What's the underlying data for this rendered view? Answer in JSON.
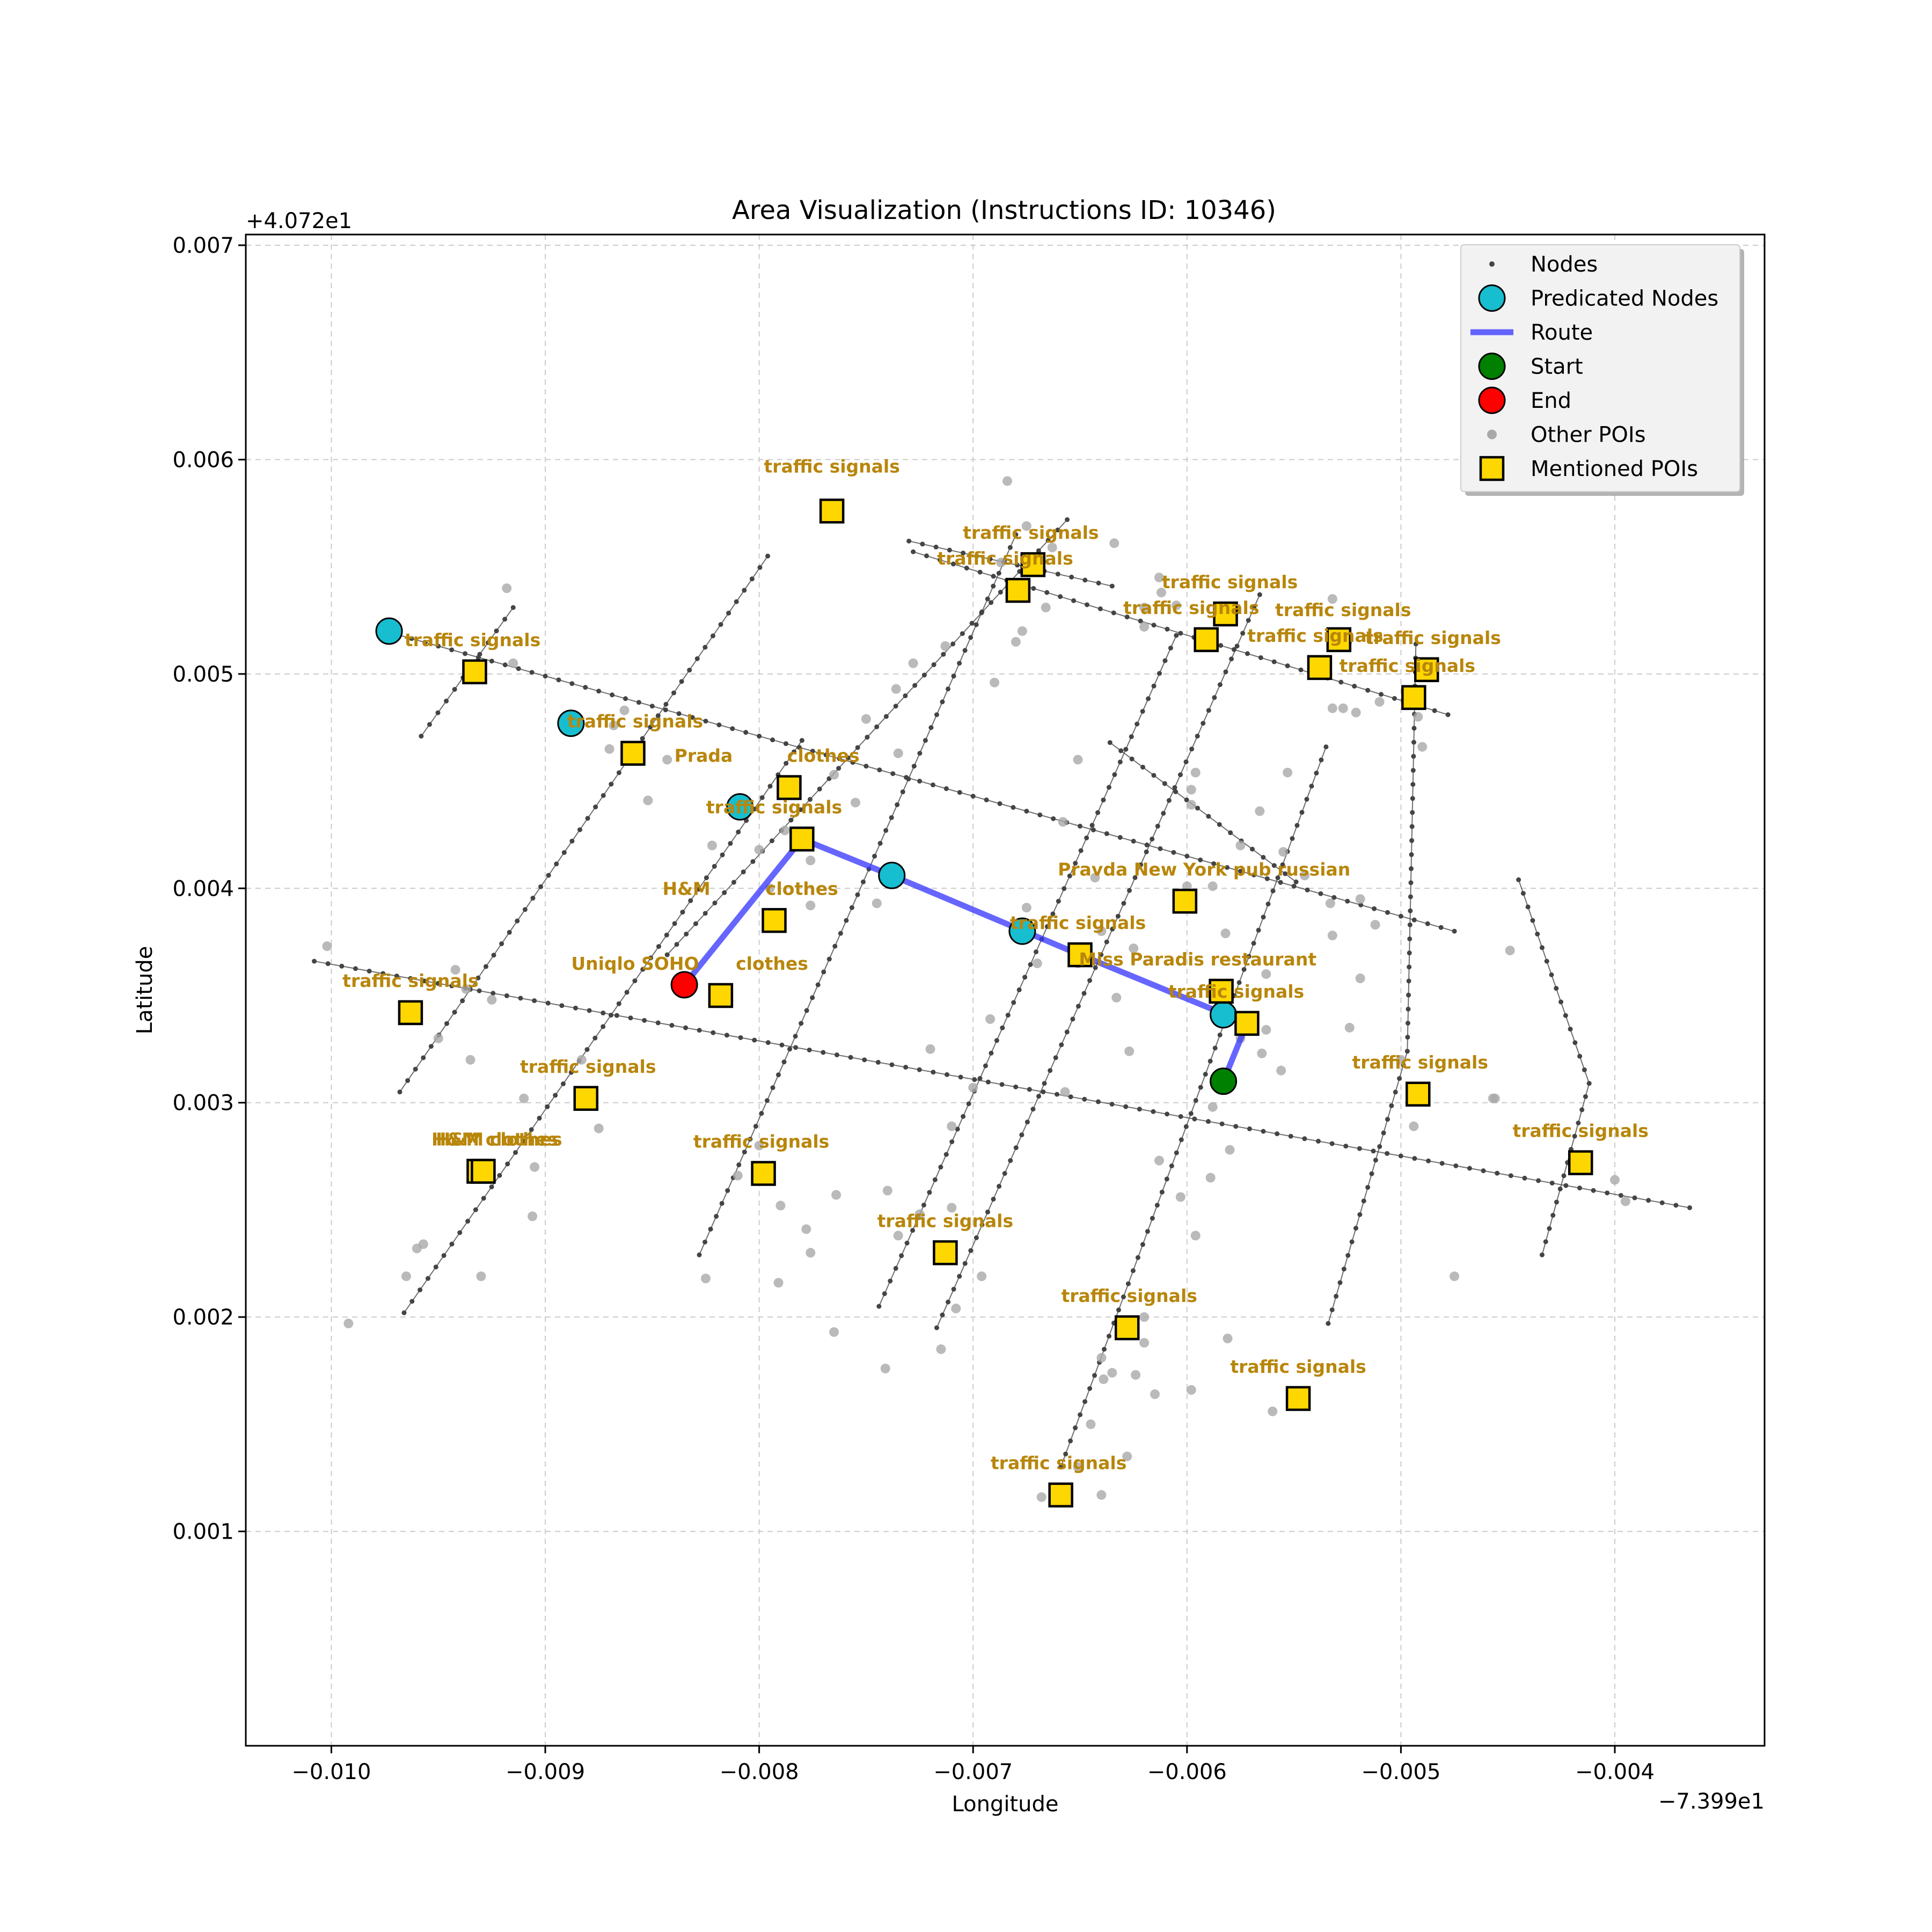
{
  "chart_data": {
    "type": "scatter",
    "title": "Area Visualization (Instructions ID: 10346)",
    "xlabel": "Longitude",
    "ylabel": "Latitude",
    "x_offset_label": "−7.399e1",
    "y_offset_label": "+4.072e1",
    "x_offset": -73.99,
    "y_offset": 40.72,
    "xlim": [
      -0.0104,
      -0.0033
    ],
    "ylim": [
      0.0,
      0.00705
    ],
    "x_ticks": [
      {
        "value": -0.01,
        "label": "−0.010"
      },
      {
        "value": -0.009,
        "label": "−0.009"
      },
      {
        "value": -0.008,
        "label": "−0.008"
      },
      {
        "value": -0.007,
        "label": "−0.007"
      },
      {
        "value": -0.006,
        "label": "−0.006"
      },
      {
        "value": -0.005,
        "label": "−0.005"
      },
      {
        "value": -0.004,
        "label": "−0.004"
      }
    ],
    "y_ticks": [
      {
        "value": 0.001,
        "label": "0.001"
      },
      {
        "value": 0.002,
        "label": "0.002"
      },
      {
        "value": 0.003,
        "label": "0.003"
      },
      {
        "value": 0.004,
        "label": "0.004"
      },
      {
        "value": 0.005,
        "label": "0.005"
      },
      {
        "value": 0.006,
        "label": "0.006"
      },
      {
        "value": 0.007,
        "label": "0.007"
      }
    ],
    "grid": true,
    "legend_position": "top-right",
    "legend": [
      {
        "key": "nodes",
        "label": "Nodes"
      },
      {
        "key": "predicated",
        "label": "Predicated Nodes"
      },
      {
        "key": "route",
        "label": "Route"
      },
      {
        "key": "start",
        "label": "Start"
      },
      {
        "key": "end",
        "label": "End"
      },
      {
        "key": "other_pois",
        "label": "Other POIs"
      },
      {
        "key": "mentioned_pois",
        "label": "Mentioned POIs"
      }
    ],
    "colors": {
      "nodes": "#444444",
      "predicated": "#17becf",
      "route": "#3333ff",
      "start": "#008000",
      "end": "#ff0000",
      "other_pois": "#a9a9a9",
      "mentioned_pois": "#ffd700",
      "poi_label": "#b8860b",
      "grid": "#cccccc"
    },
    "streets": [
      [
        [
          -0.01008,
          0.00366
        ],
        [
          -0.00365,
          0.00251
        ]
      ],
      [
        [
          -0.00975,
          0.0052
        ],
        [
          -0.00475,
          0.0038
        ]
      ],
      [
        [
          -0.00728,
          0.00557
        ],
        [
          -0.00478,
          0.00481
        ]
      ],
      [
        [
          -0.0073,
          0.00562
        ],
        [
          -0.00635,
          0.00541
        ]
      ],
      [
        [
          -0.00636,
          0.00468
        ],
        [
          -0.00549,
          0.00403
        ]
      ],
      [
        [
          -0.00968,
          0.00305
        ],
        [
          -0.00796,
          0.00555
        ]
      ],
      [
        [
          -0.00966,
          0.00202
        ],
        [
          -0.0078,
          0.00469
        ]
      ],
      [
        [
          -0.00958,
          0.00471
        ],
        [
          -0.00915,
          0.00531
        ]
      ],
      [
        [
          -0.00828,
          0.00229
        ],
        [
          -0.0068,
          0.00565
        ]
      ],
      [
        [
          -0.00843,
          0.00369
        ],
        [
          -0.00656,
          0.00572
        ]
      ],
      [
        [
          -0.00744,
          0.00205
        ],
        [
          -0.00605,
          0.00518
        ]
      ],
      [
        [
          -0.00717,
          0.00195
        ],
        [
          -0.00566,
          0.00537
        ]
      ],
      [
        [
          -0.00659,
          0.0013
        ],
        [
          -0.00535,
          0.00466
        ]
      ],
      [
        [
          -0.00534,
          0.00197
        ],
        [
          -0.00497,
          0.00324
        ]
      ],
      [
        [
          -0.00497,
          0.00324
        ],
        [
          -0.00493,
          0.00514
        ]
      ],
      [
        [
          -0.00434,
          0.00229
        ],
        [
          -0.00412,
          0.00309
        ]
      ],
      [
        [
          -0.00412,
          0.00309
        ],
        [
          -0.00445,
          0.00404
        ]
      ]
    ],
    "nodes_count_hint": 0,
    "other_pois": [
      [
        -0.01002,
        0.00373
      ],
      [
        -0.00992,
        0.00197
      ],
      [
        -0.00957,
        0.00234
      ],
      [
        -0.00965,
        0.00219
      ],
      [
        -0.0096,
        0.00232
      ],
      [
        -0.0095,
        0.0033
      ],
      [
        -0.00942,
        0.00362
      ],
      [
        -0.00937,
        0.00353
      ],
      [
        -0.00935,
        0.0032
      ],
      [
        -0.00925,
        0.00348
      ],
      [
        -0.00905,
        0.0027
      ],
      [
        -0.0091,
        0.00302
      ],
      [
        -0.00906,
        0.00247
      ],
      [
        -0.0093,
        0.00219
      ],
      [
        -0.00915,
        0.00505
      ],
      [
        -0.00918,
        0.0054
      ],
      [
        -0.00883,
        0.0032
      ],
      [
        -0.00875,
        0.00288
      ],
      [
        -0.00868,
        0.00476
      ],
      [
        -0.00863,
        0.00483
      ],
      [
        -0.0087,
        0.00465
      ],
      [
        -0.00852,
        0.00441
      ],
      [
        -0.00843,
        0.0046
      ],
      [
        -0.00822,
        0.0042
      ],
      [
        -0.008,
        0.00418
      ],
      [
        -0.00788,
        0.00427
      ],
      [
        -0.00795,
        0.004
      ],
      [
        -0.008,
        0.0028
      ],
      [
        -0.0081,
        0.00266
      ],
      [
        -0.0079,
        0.00252
      ],
      [
        -0.00825,
        0.00218
      ],
      [
        -0.00776,
        0.00392
      ],
      [
        -0.00776,
        0.00413
      ],
      [
        -0.00765,
        0.00453
      ],
      [
        -0.00755,
        0.0044
      ],
      [
        -0.0075,
        0.00479
      ],
      [
        -0.00735,
        0.00463
      ],
      [
        -0.00728,
        0.00505
      ],
      [
        -0.00736,
        0.00493
      ],
      [
        -0.00713,
        0.00513
      ],
      [
        -0.00745,
        0.00393
      ],
      [
        -0.0072,
        0.00325
      ],
      [
        -0.0071,
        0.00289
      ],
      [
        -0.007,
        0.00307
      ],
      [
        -0.00735,
        0.00238
      ],
      [
        -0.0074,
        0.00259
      ],
      [
        -0.00725,
        0.00248
      ],
      [
        -0.00708,
        0.00204
      ],
      [
        -0.00696,
        0.00219
      ],
      [
        -0.00715,
        0.00185
      ],
      [
        -0.00741,
        0.00176
      ],
      [
        -0.00765,
        0.00193
      ],
      [
        -0.0071,
        0.00251
      ],
      [
        -0.00692,
        0.00339
      ],
      [
        -0.0068,
        0.00515
      ],
      [
        -0.00677,
        0.0052
      ],
      [
        -0.0069,
        0.00496
      ],
      [
        -0.00687,
        0.00552
      ],
      [
        -0.00675,
        0.00569
      ],
      [
        -0.00663,
        0.00559
      ],
      [
        -0.00666,
        0.00531
      ],
      [
        -0.00684,
        0.0059
      ],
      [
        -0.00634,
        0.00561
      ],
      [
        -0.00658,
        0.00431
      ],
      [
        -0.00651,
        0.0046
      ],
      [
        -0.00643,
        0.00405
      ],
      [
        -0.0064,
        0.0038
      ],
      [
        -0.00625,
        0.00372
      ],
      [
        -0.00633,
        0.00349
      ],
      [
        -0.00651,
        0.00365
      ],
      [
        -0.00675,
        0.00391
      ],
      [
        -0.0067,
        0.00365
      ],
      [
        -0.00657,
        0.00305
      ],
      [
        -0.00612,
        0.00538
      ],
      [
        -0.00605,
        0.00532
      ],
      [
        -0.0062,
        0.00531
      ],
      [
        -0.00613,
        0.00545
      ],
      [
        -0.00598,
        0.00446
      ],
      [
        -0.0062,
        0.00522
      ],
      [
        -0.00596,
        0.00454
      ],
      [
        -0.00598,
        0.00439
      ],
      [
        -0.00582,
        0.00338
      ],
      [
        -0.00582,
        0.00379
      ],
      [
        -0.00575,
        0.0033
      ],
      [
        -0.00569,
        0.00335
      ],
      [
        -0.00563,
        0.00334
      ],
      [
        -0.00556,
        0.00315
      ],
      [
        -0.00565,
        0.00323
      ],
      [
        -0.00566,
        0.00436
      ],
      [
        -0.00555,
        0.00417
      ],
      [
        -0.00545,
        0.00406
      ],
      [
        -0.00532,
        0.00484
      ],
      [
        -0.00527,
        0.00484
      ],
      [
        -0.00521,
        0.00482
      ],
      [
        -0.00519,
        0.00395
      ],
      [
        -0.0051,
        0.00487
      ],
      [
        -0.00512,
        0.00383
      ],
      [
        -0.00532,
        0.00378
      ],
      [
        -0.00519,
        0.00358
      ],
      [
        -0.00524,
        0.00335
      ],
      [
        -0.00553,
        0.00454
      ],
      [
        -0.00532,
        0.00535
      ],
      [
        -0.00525,
        0.00515
      ],
      [
        -0.0049,
        0.00466
      ],
      [
        -0.005,
        0.0032
      ],
      [
        -0.00494,
        0.00289
      ],
      [
        -0.00475,
        0.00219
      ],
      [
        -0.00456,
        0.00302
      ],
      [
        -0.00457,
        0.00302
      ],
      [
        -0.00449,
        0.00371
      ],
      [
        -0.00492,
        0.0048
      ],
      [
        -0.006,
        0.00401
      ],
      [
        -0.00627,
        0.00324
      ],
      [
        -0.00613,
        0.00273
      ],
      [
        -0.00588,
        0.00298
      ],
      [
        -0.0058,
        0.00278
      ],
      [
        -0.00603,
        0.00256
      ],
      [
        -0.00589,
        0.00265
      ],
      [
        -0.00596,
        0.00238
      ],
      [
        -0.00581,
        0.0019
      ],
      [
        -0.0062,
        0.00188
      ],
      [
        -0.00598,
        0.00166
      ],
      [
        -0.00615,
        0.00164
      ],
      [
        -0.00624,
        0.00173
      ],
      [
        -0.00635,
        0.00174
      ],
      [
        -0.0064,
        0.00181
      ],
      [
        -0.00639,
        0.00171
      ],
      [
        -0.00645,
        0.0015
      ],
      [
        -0.0062,
        0.002
      ],
      [
        -0.0056,
        0.00156
      ],
      [
        -0.00651,
        0.0013
      ],
      [
        -0.0064,
        0.00117
      ],
      [
        -0.00628,
        0.00135
      ],
      [
        -0.00668,
        0.00116
      ],
      [
        -0.00776,
        0.0023
      ],
      [
        -0.00764,
        0.00257
      ],
      [
        -0.00791,
        0.00216
      ],
      [
        -0.00778,
        0.00241
      ],
      [
        -0.004,
        0.00264
      ],
      [
        -0.00395,
        0.00254
      ],
      [
        -0.00563,
        0.0036
      ],
      [
        -0.00575,
        0.0042
      ],
      [
        -0.00588,
        0.00401
      ],
      [
        -0.00533,
        0.00393
      ]
    ],
    "mentioned_pois": [
      {
        "x": -0.00766,
        "y": 0.00576,
        "label": "traffic signals",
        "lx": -0.00766,
        "ly": 0.00594
      },
      {
        "x": -0.00672,
        "y": 0.00551,
        "label": "traffic signals",
        "lx": -0.00673,
        "ly": 0.00563
      },
      {
        "x": -0.00679,
        "y": 0.00539,
        "label": "traffic signals",
        "lx": -0.00685,
        "ly": 0.00551
      },
      {
        "x": -0.00582,
        "y": 0.00528,
        "label": "traffic signals",
        "lx": -0.0058,
        "ly": 0.0054
      },
      {
        "x": -0.00591,
        "y": 0.00516,
        "label": "traffic signals",
        "lx": -0.00598,
        "ly": 0.00528
      },
      {
        "x": -0.00529,
        "y": 0.00516,
        "label": "traffic signals",
        "lx": -0.00527,
        "ly": 0.00527
      },
      {
        "x": -0.00538,
        "y": 0.00503,
        "label": "traffic signals",
        "lx": -0.0054,
        "ly": 0.00515
      },
      {
        "x": -0.00488,
        "y": 0.00502,
        "label": "traffic signals",
        "lx": -0.00485,
        "ly": 0.00514
      },
      {
        "x": -0.00494,
        "y": 0.00489,
        "label": "traffic signals",
        "lx": -0.00497,
        "ly": 0.00501
      },
      {
        "x": -0.00933,
        "y": 0.00501,
        "label": "traffic signals",
        "lx": -0.00934,
        "ly": 0.00513
      },
      {
        "x": -0.00859,
        "y": 0.00463,
        "label": "traffic signals",
        "lx": -0.00858,
        "ly": 0.00475
      },
      {
        "x": -0.00786,
        "y": 0.00447,
        "label": "Prada",
        "lx": -0.00826,
        "ly": 0.00459
      },
      {
        "x": -0.00786,
        "y": 0.00447,
        "label": "clothes",
        "lx": -0.0077,
        "ly": 0.00459
      },
      {
        "x": -0.0078,
        "y": 0.00423,
        "label": "traffic signals",
        "lx": -0.00793,
        "ly": 0.00435
      },
      {
        "x": -0.00793,
        "y": 0.00385,
        "label": "H&M",
        "lx": -0.00834,
        "ly": 0.00397
      },
      {
        "x": -0.00793,
        "y": 0.00385,
        "label": "clothes",
        "lx": -0.0078,
        "ly": 0.00397
      },
      {
        "x": -0.00818,
        "y": 0.0035,
        "label": "Uniqlo SOHO",
        "lx": -0.00858,
        "ly": 0.00362
      },
      {
        "x": -0.00818,
        "y": 0.0035,
        "label": "clothes",
        "lx": -0.00794,
        "ly": 0.00362
      },
      {
        "x": -0.00601,
        "y": 0.00394,
        "label": "Pravda New York pub russian",
        "lx": -0.00592,
        "ly": 0.00406
      },
      {
        "x": -0.0065,
        "y": 0.00369,
        "label": "traffic signals",
        "lx": -0.00651,
        "ly": 0.00381
      },
      {
        "x": -0.00584,
        "y": 0.00352,
        "label": "Miss Paradis restaurant",
        "lx": -0.00595,
        "ly": 0.00364
      },
      {
        "x": -0.00572,
        "y": 0.00337,
        "label": "traffic signals",
        "lx": -0.00577,
        "ly": 0.00349
      },
      {
        "x": -0.00963,
        "y": 0.00342,
        "label": "traffic signals",
        "lx": -0.00963,
        "ly": 0.00354
      },
      {
        "x": -0.00881,
        "y": 0.00302,
        "label": "traffic signals",
        "lx": -0.0088,
        "ly": 0.00314
      },
      {
        "x": -0.00492,
        "y": 0.00304,
        "label": "traffic signals",
        "lx": -0.00491,
        "ly": 0.00316
      },
      {
        "x": -0.00931,
        "y": 0.00268,
        "label": "H&M",
        "lx": -0.00942,
        "ly": 0.0028
      },
      {
        "x": -0.00931,
        "y": 0.00268,
        "label": "clothes",
        "lx": -0.00909,
        "ly": 0.0028
      },
      {
        "x": -0.00929,
        "y": 0.00268,
        "label": "H&M",
        "lx": -0.0094,
        "ly": 0.0028
      },
      {
        "x": -0.00929,
        "y": 0.00268,
        "label": "clothes",
        "lx": -0.00911,
        "ly": 0.0028
      },
      {
        "x": -0.00798,
        "y": 0.00267,
        "label": "traffic signals",
        "lx": -0.00799,
        "ly": 0.00279
      },
      {
        "x": -0.00416,
        "y": 0.00272,
        "label": "traffic signals",
        "lx": -0.00416,
        "ly": 0.00284
      },
      {
        "x": -0.00713,
        "y": 0.0023,
        "label": "traffic signals",
        "lx": -0.00713,
        "ly": 0.00242
      },
      {
        "x": -0.00628,
        "y": 0.00195,
        "label": "traffic signals",
        "lx": -0.00627,
        "ly": 0.00207
      },
      {
        "x": -0.00548,
        "y": 0.00162,
        "label": "traffic signals",
        "lx": -0.00548,
        "ly": 0.00174
      },
      {
        "x": -0.00659,
        "y": 0.00117,
        "label": "traffic signals",
        "lx": -0.0066,
        "ly": 0.00129
      }
    ],
    "predicated_nodes": [
      [
        -0.00973,
        0.0052
      ],
      [
        -0.00888,
        0.00477
      ],
      [
        -0.00809,
        0.00438
      ],
      [
        -0.00738,
        0.00406
      ],
      [
        -0.00677,
        0.0038
      ],
      [
        -0.00583,
        0.00341
      ]
    ],
    "route": [
      [
        -0.00583,
        0.0031
      ],
      [
        -0.00572,
        0.00337
      ],
      [
        -0.0065,
        0.00369
      ],
      [
        -0.00738,
        0.00406
      ],
      [
        -0.0078,
        0.00423
      ],
      [
        -0.00835,
        0.00355
      ]
    ],
    "start": [
      -0.00583,
      0.0031
    ],
    "end": [
      -0.00835,
      0.00355
    ]
  }
}
